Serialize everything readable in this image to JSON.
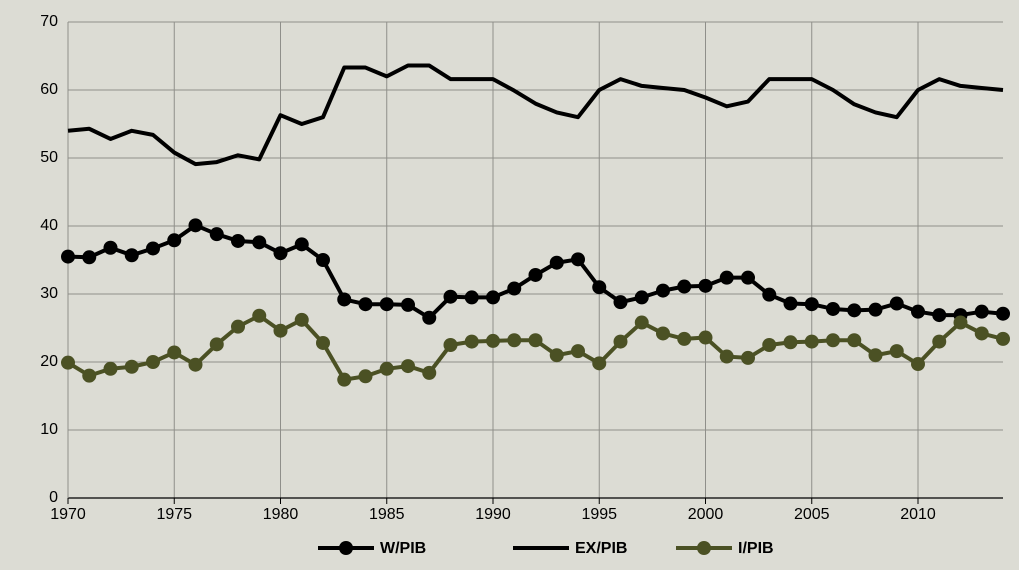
{
  "chart_data": {
    "type": "line",
    "x": [
      1970,
      1971,
      1972,
      1973,
      1974,
      1975,
      1976,
      1977,
      1978,
      1979,
      1980,
      1981,
      1982,
      1983,
      1984,
      1985,
      1986,
      1987,
      1988,
      1989,
      1990,
      1991,
      1992,
      1993,
      1994,
      1995,
      1996,
      1997,
      1998,
      1999,
      2000,
      2001,
      2002,
      2003,
      2004,
      2005,
      2006,
      2007,
      2008,
      2009,
      2010,
      2011,
      2012,
      2013,
      2014
    ],
    "series": [
      {
        "name": "W/PIB",
        "color": "#000000",
        "markers": true,
        "values": [
          35.5,
          35.4,
          36.8,
          35.7,
          36.7,
          37.9,
          40.1,
          38.8,
          37.8,
          37.6,
          36,
          37.3,
          35,
          29.2,
          28.5,
          28.5,
          28.4,
          26.5,
          29.6,
          29.5,
          29.5,
          30.8,
          32.8,
          34.6,
          35.1,
          31,
          28.8,
          29.5,
          30.5,
          31.1,
          31.2,
          32.4,
          32.4,
          29.9,
          28.6,
          28.5,
          27.8,
          27.6,
          27.7,
          28.6,
          27.4,
          26.9,
          26.9,
          27.4,
          27.1
        ]
      },
      {
        "name": "EX/PIB",
        "color": "#000000",
        "markers": false,
        "values": [
          54,
          54.3,
          52.8,
          54,
          53.4,
          50.8,
          49.1,
          49.4,
          50.4,
          49.8,
          56.3,
          55,
          56,
          63.3,
          63.3,
          62,
          63.6,
          63.6,
          61.6,
          61.6,
          61.6,
          59.9,
          58,
          56.7,
          56,
          60,
          61.6,
          60.6,
          60.3,
          60,
          58.9,
          57.6,
          58.3,
          61.6,
          61.6,
          61.6,
          60,
          57.9,
          56.7,
          56,
          60,
          61.6,
          60.6,
          60.3,
          60
        ]
      },
      {
        "name": "I/PIB",
        "color": "#4b5124",
        "markers": true,
        "values": [
          19.9,
          18,
          19,
          19.3,
          20,
          21.4,
          19.6,
          22.6,
          25.2,
          26.8,
          24.6,
          26.2,
          22.8,
          17.4,
          17.9,
          19,
          19.4,
          18.4,
          22.5,
          23,
          23.1,
          23.2,
          23.2,
          21,
          21.6,
          19.8,
          23,
          25.8,
          24.2,
          23.4,
          23.6,
          20.8,
          20.6,
          22.5,
          22.9,
          23,
          23.2,
          23.2,
          21,
          21.6,
          19.7,
          23,
          25.8,
          24.2,
          23.4
        ]
      }
    ],
    "xlim": [
      1970,
      2014
    ],
    "xticks": [
      1970,
      1975,
      1980,
      1985,
      1990,
      1995,
      2000,
      2005,
      2010
    ],
    "ylim": [
      0,
      70
    ],
    "yticks": [
      0,
      10,
      20,
      30,
      40,
      50,
      60,
      70
    ],
    "grid": true,
    "legend": "bottom"
  }
}
